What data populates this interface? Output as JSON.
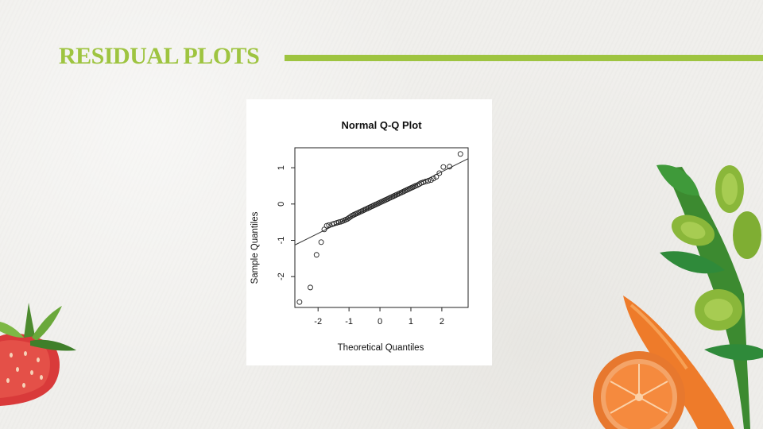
{
  "slide": {
    "title": "RESIDUAL PLOTS",
    "accent_color": "#9ec440"
  },
  "chart_data": {
    "type": "scatter",
    "title": "Normal Q-Q Plot",
    "xlabel": "Theoretical Quantiles",
    "ylabel": "Sample Quantiles",
    "xlim": [
      -2.75,
      2.85
    ],
    "ylim": [
      -2.85,
      1.55
    ],
    "x_ticks": [
      -2,
      -1,
      0,
      1,
      2
    ],
    "y_ticks": [
      -2,
      -1,
      0,
      1
    ],
    "grid": false,
    "reference_line": {
      "intercept": 0.04,
      "slope": 0.425
    },
    "points": {
      "x": [
        -2.6,
        -2.25,
        -2.05,
        -1.9,
        -1.8,
        -1.72,
        -1.65,
        -1.55,
        -1.48,
        -1.4,
        -1.33,
        -1.27,
        -1.21,
        -1.15,
        -1.1,
        -1.05,
        -1.0,
        -0.95,
        -0.9,
        -0.85,
        -0.8,
        -0.75,
        -0.7,
        -0.65,
        -0.6,
        -0.55,
        -0.5,
        -0.45,
        -0.4,
        -0.35,
        -0.3,
        -0.25,
        -0.2,
        -0.15,
        -0.1,
        -0.05,
        0.0,
        0.05,
        0.1,
        0.15,
        0.2,
        0.25,
        0.3,
        0.35,
        0.4,
        0.45,
        0.5,
        0.55,
        0.6,
        0.65,
        0.7,
        0.75,
        0.8,
        0.85,
        0.9,
        0.95,
        1.0,
        1.05,
        1.1,
        1.15,
        1.21,
        1.27,
        1.33,
        1.4,
        1.48,
        1.56,
        1.65,
        1.73,
        1.82,
        1.92,
        2.05,
        2.25,
        2.6
      ],
      "y": [
        -2.7,
        -2.3,
        -1.4,
        -1.05,
        -0.7,
        -0.6,
        -0.58,
        -0.56,
        -0.54,
        -0.52,
        -0.5,
        -0.49,
        -0.47,
        -0.45,
        -0.43,
        -0.41,
        -0.38,
        -0.35,
        -0.32,
        -0.3,
        -0.28,
        -0.26,
        -0.24,
        -0.22,
        -0.2,
        -0.18,
        -0.16,
        -0.14,
        -0.12,
        -0.1,
        -0.08,
        -0.06,
        -0.04,
        -0.02,
        0.0,
        0.02,
        0.04,
        0.06,
        0.08,
        0.1,
        0.12,
        0.14,
        0.16,
        0.18,
        0.2,
        0.22,
        0.24,
        0.26,
        0.28,
        0.3,
        0.32,
        0.34,
        0.36,
        0.38,
        0.4,
        0.42,
        0.44,
        0.46,
        0.48,
        0.5,
        0.52,
        0.55,
        0.58,
        0.6,
        0.62,
        0.64,
        0.66,
        0.7,
        0.75,
        0.85,
        1.02,
        1.03,
        1.38
      ]
    }
  }
}
